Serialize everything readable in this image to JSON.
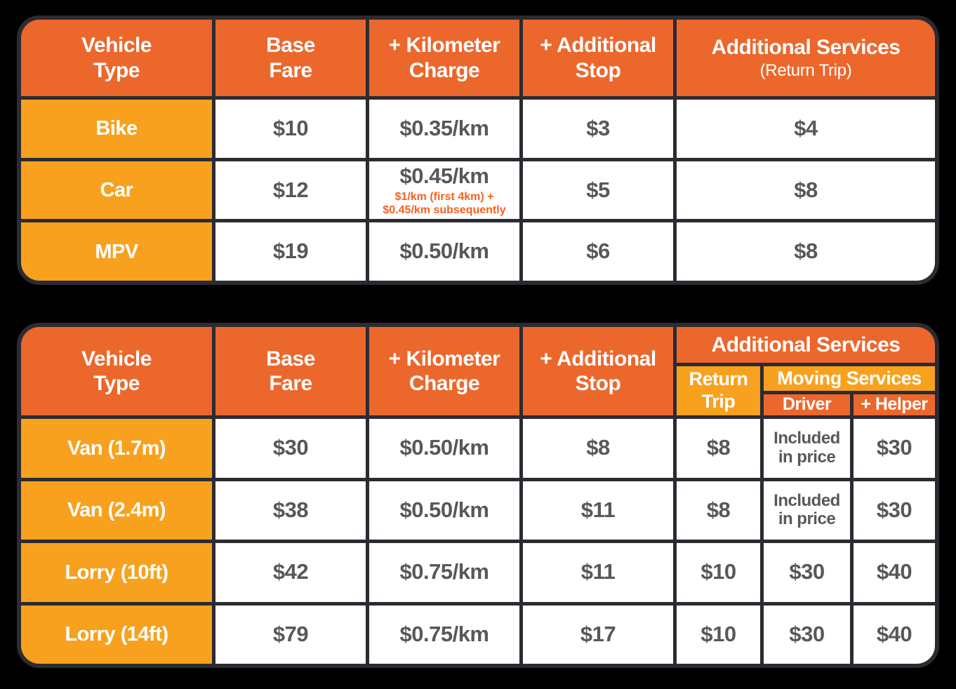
{
  "colors": {
    "header_orange": "#EC672C",
    "row_label_amber": "#F8A11E",
    "note_orange": "#F4621E",
    "value_gray": "#57585B",
    "grid_border": "#2B2B32",
    "background": "#000000"
  },
  "chart_data": [
    {
      "type": "table",
      "name": "standard-vehicles-pricing",
      "header": {
        "vehicle_type": "Vehicle\nType",
        "base_fare": "Base\nFare",
        "km_charge": "+ Kilometer\nCharge",
        "additional_stop": "+ Additional\nStop",
        "additional_services": "Additional Services",
        "additional_services_sub": "(Return Trip)"
      },
      "rows": [
        {
          "vehicle": "Bike",
          "base_fare": "$10",
          "km_charge": "$0.35/km",
          "additional_stop": "$3",
          "additional_services": "$4"
        },
        {
          "vehicle": "Car",
          "base_fare": "$12",
          "km_charge": "$0.45/km",
          "km_charge_note": "$1/km (first 4km) +\n$0.45/km subsequently",
          "additional_stop": "$5",
          "additional_services": "$8"
        },
        {
          "vehicle": "MPV",
          "base_fare": "$19",
          "km_charge": "$0.50/km",
          "additional_stop": "$6",
          "additional_services": "$8"
        }
      ]
    },
    {
      "type": "table",
      "name": "vans-lorries-pricing",
      "header": {
        "vehicle_type": "Vehicle\nType",
        "base_fare": "Base\nFare",
        "km_charge": "+ Kilometer\nCharge",
        "additional_stop": "+ Additional\nStop",
        "additional_services": "Additional Services",
        "return_trip": "Return\nTrip",
        "moving_services": "Moving Services",
        "driver": "Driver",
        "helper": "+ Helper"
      },
      "rows": [
        {
          "vehicle": "Van (1.7m)",
          "base_fare": "$30",
          "km_charge": "$0.50/km",
          "additional_stop": "$8",
          "return_trip": "$8",
          "driver": "Included\nin price",
          "helper": "$30"
        },
        {
          "vehicle": "Van (2.4m)",
          "base_fare": "$38",
          "km_charge": "$0.50/km",
          "additional_stop": "$11",
          "return_trip": "$8",
          "driver": "Included\nin price",
          "helper": "$30"
        },
        {
          "vehicle": "Lorry (10ft)",
          "base_fare": "$42",
          "km_charge": "$0.75/km",
          "additional_stop": "$11",
          "return_trip": "$10",
          "driver": "$30",
          "helper": "$40"
        },
        {
          "vehicle": "Lorry (14ft)",
          "base_fare": "$79",
          "km_charge": "$0.75/km",
          "additional_stop": "$17",
          "return_trip": "$10",
          "driver": "$30",
          "helper": "$40"
        }
      ]
    }
  ]
}
